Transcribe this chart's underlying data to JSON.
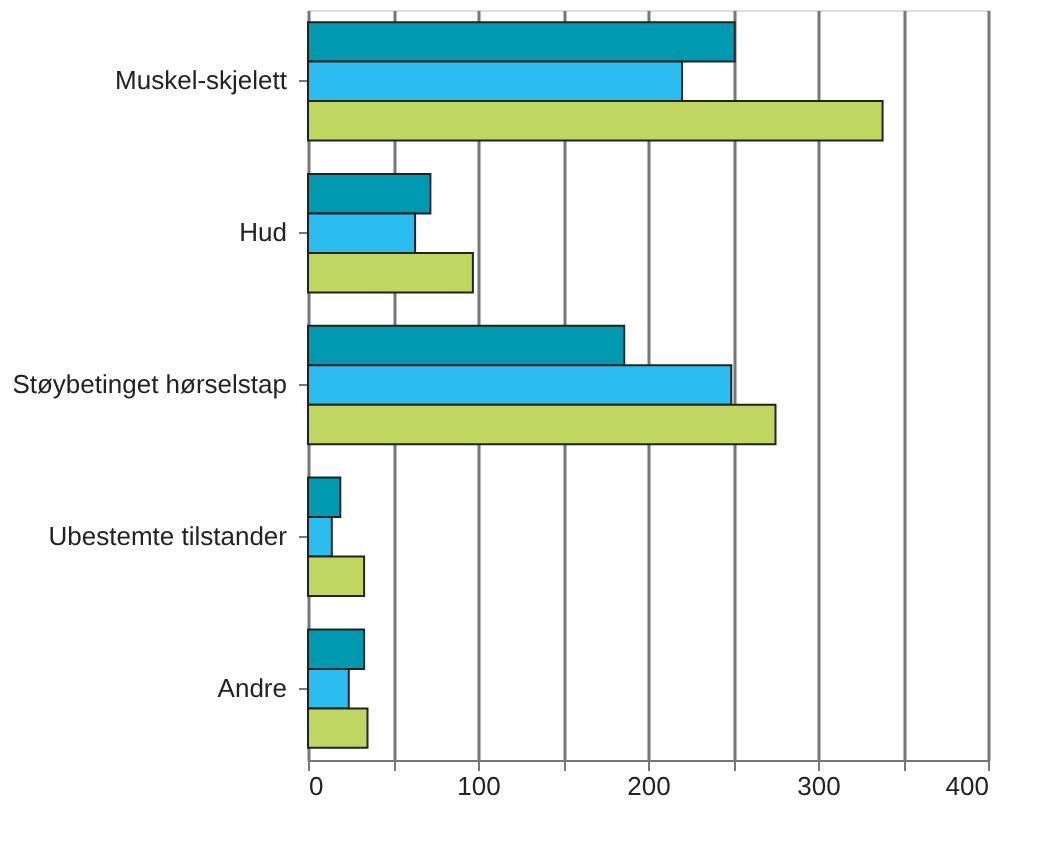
{
  "chart_data": {
    "type": "bar",
    "orientation": "horizontal",
    "categories": [
      "Muskel-skjelett",
      "Hud",
      "Støybetinget hørselstap",
      "Ubestemte tilstander",
      "Andre"
    ],
    "series": [
      {
        "color": "#009ab0",
        "values": [
          251,
          72,
          186,
          19,
          33
        ]
      },
      {
        "color": "#2bbdef",
        "values": [
          220,
          63,
          249,
          14,
          24
        ]
      },
      {
        "color": "#c0d660",
        "values": [
          338,
          97,
          275,
          33,
          35
        ]
      }
    ],
    "xlim": [
      0,
      400
    ],
    "xticks": [
      0,
      {
        "value": 50,
        "label": null
      },
      100,
      {
        "value": 150,
        "label": null
      },
      200,
      {
        "value": 250,
        "label": null
      },
      300,
      {
        "value": 350,
        "label": null
      },
      400
    ],
    "grid": "x",
    "legend": false
  }
}
